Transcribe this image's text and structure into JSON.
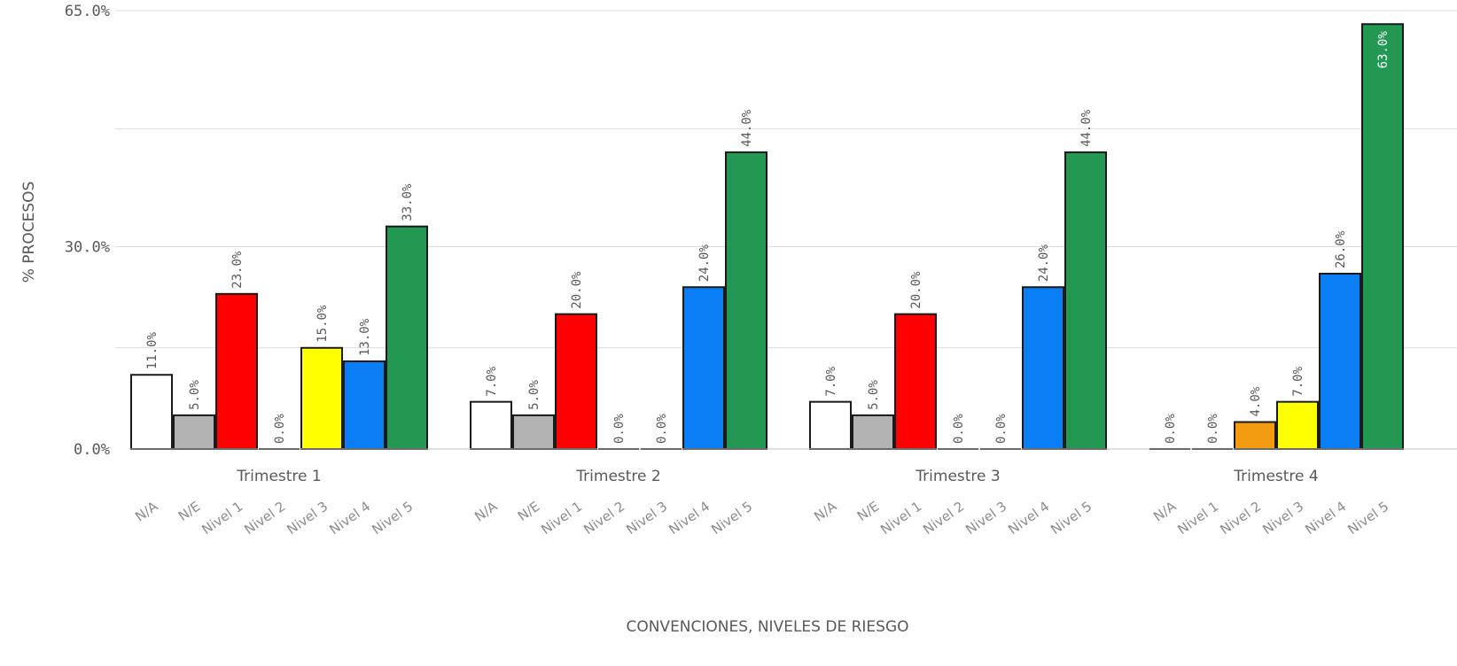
{
  "chart_data": {
    "type": "bar",
    "xlabel": "CONVENCIONES, NIVELES DE RIESGO",
    "ylabel": "% PROCESOS",
    "ylim": [
      0,
      65
    ],
    "yticks": [
      "0.0%",
      "30.0%",
      "65.0%"
    ],
    "grid": true,
    "colors": {
      "N/A": "#ffffff",
      "N/E": "#b3b3b3",
      "Nivel 1": "#ff0000",
      "Nivel 2": "#f39c12",
      "Nivel 3": "#ffff00",
      "Nivel 4": "#0a7ef5",
      "Nivel 5": "#229853"
    },
    "groups": [
      {
        "name": "Trimestre 1",
        "bars": [
          {
            "category": "N/A",
            "value": 11,
            "label": "11.0%"
          },
          {
            "category": "N/E",
            "value": 5,
            "label": "5.0%"
          },
          {
            "category": "Nivel 1",
            "value": 23,
            "label": "23.0%"
          },
          {
            "category": "Nivel 2",
            "value": 0,
            "label": "0.0%"
          },
          {
            "category": "Nivel 3",
            "value": 15,
            "label": "15.0%"
          },
          {
            "category": "Nivel 4",
            "value": 13,
            "label": "13.0%"
          },
          {
            "category": "Nivel 5",
            "value": 33,
            "label": "33.0%"
          }
        ]
      },
      {
        "name": "Trimestre 2",
        "bars": [
          {
            "category": "N/A",
            "value": 7,
            "label": "7.0%"
          },
          {
            "category": "N/E",
            "value": 5,
            "label": "5.0%"
          },
          {
            "category": "Nivel 1",
            "value": 20,
            "label": "20.0%"
          },
          {
            "category": "Nivel 2",
            "value": 0,
            "label": "0.0%"
          },
          {
            "category": "Nivel 3",
            "value": 0,
            "label": "0.0%"
          },
          {
            "category": "Nivel 4",
            "value": 24,
            "label": "24.0%"
          },
          {
            "category": "Nivel 5",
            "value": 44,
            "label": "44.0%"
          }
        ]
      },
      {
        "name": "Trimestre 3",
        "bars": [
          {
            "category": "N/A",
            "value": 7,
            "label": "7.0%"
          },
          {
            "category": "N/E",
            "value": 5,
            "label": "5.0%"
          },
          {
            "category": "Nivel 1",
            "value": 20,
            "label": "20.0%"
          },
          {
            "category": "Nivel 2",
            "value": 0,
            "label": "0.0%"
          },
          {
            "category": "Nivel 3",
            "value": 0,
            "label": "0.0%"
          },
          {
            "category": "Nivel 4",
            "value": 24,
            "label": "24.0%"
          },
          {
            "category": "Nivel 5",
            "value": 44,
            "label": "44.0%"
          }
        ]
      },
      {
        "name": "Trimestre 4",
        "bars": [
          {
            "category": "N/A",
            "value": 0,
            "label": "0.0%"
          },
          {
            "category": "Nivel 1",
            "value": 0,
            "label": "0.0%"
          },
          {
            "category": "Nivel 2",
            "value": 4,
            "label": "4.0%"
          },
          {
            "category": "Nivel 3",
            "value": 7,
            "label": "7.0%"
          },
          {
            "category": "Nivel 4",
            "value": 26,
            "label": "26.0%"
          },
          {
            "category": "Nivel 5",
            "value": 63,
            "label": "63.0%"
          }
        ]
      }
    ]
  }
}
